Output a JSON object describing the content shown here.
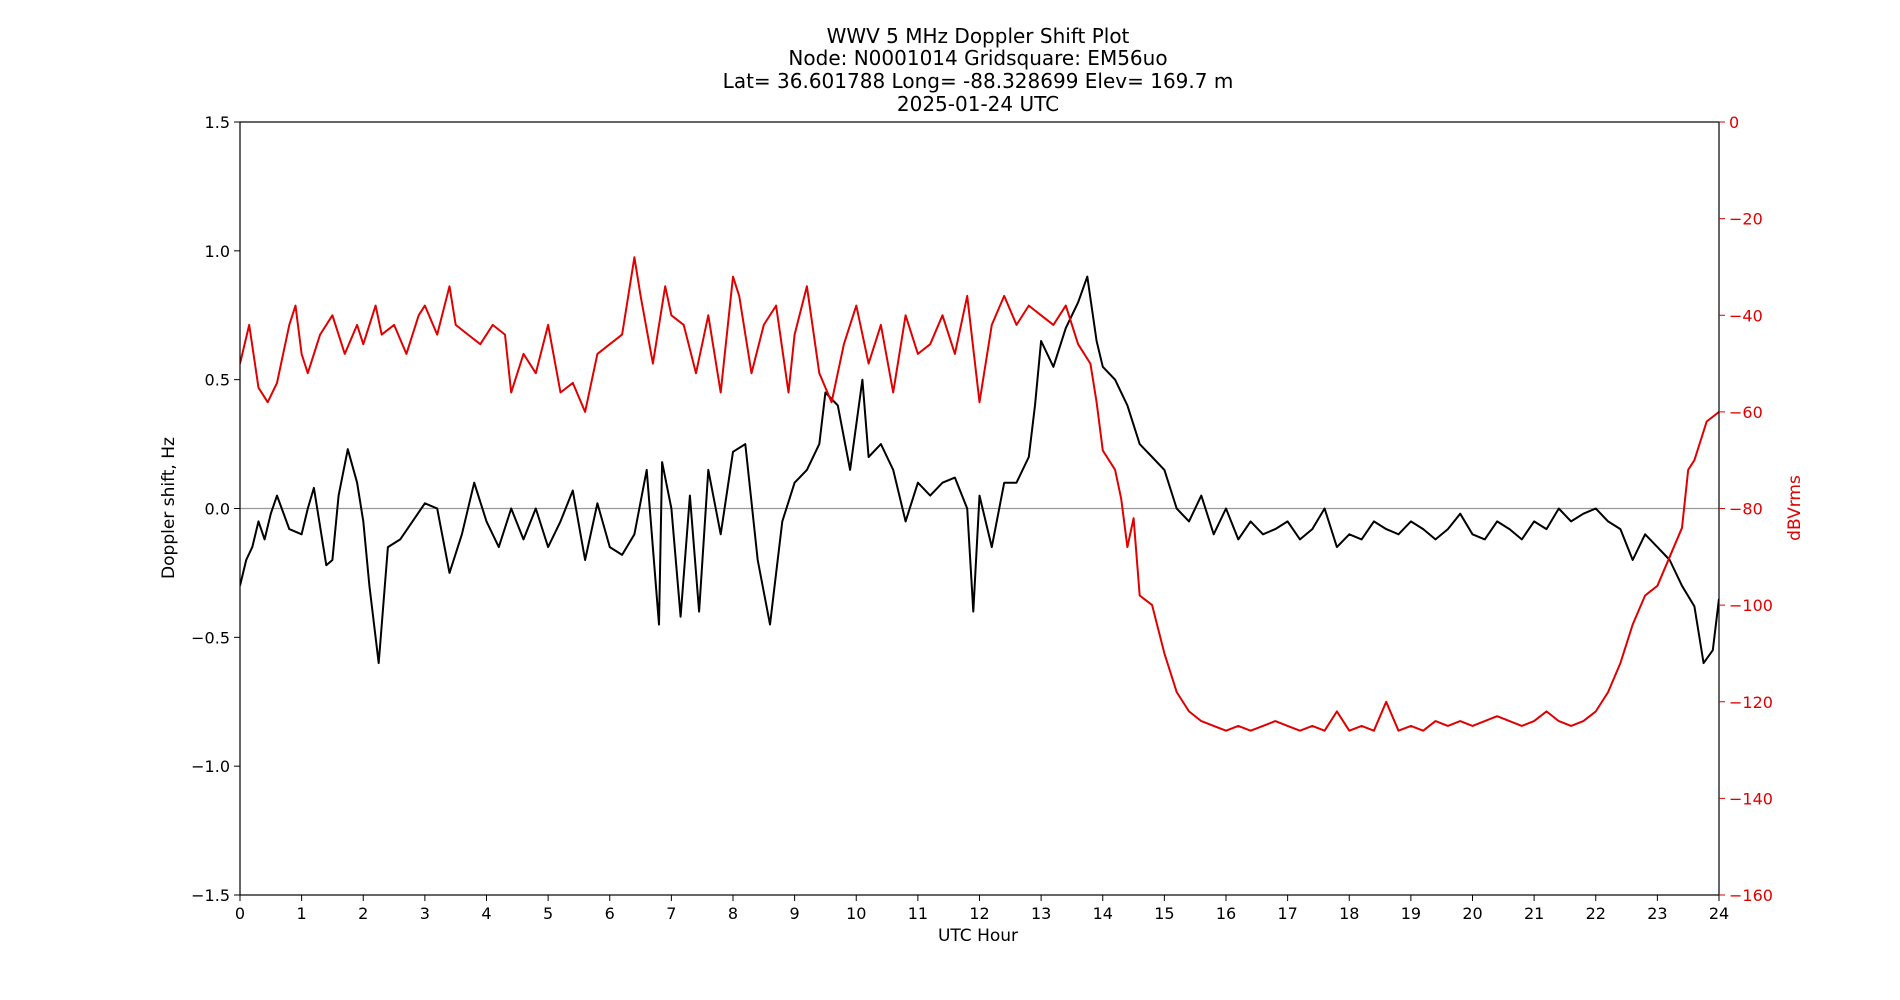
{
  "chart_data": {
    "type": "line",
    "title_lines": [
      "WWV 5 MHz Doppler Shift Plot",
      "Node:  N0001014     Gridsquare:  EM56uo",
      "Lat= 36.601788    Long= -88.328699    Elev= 169.7 m",
      "2025-01-24  UTC"
    ],
    "xlabel": "UTC Hour",
    "ylabel": "Doppler shift, Hz",
    "y2label": "dBVrms",
    "xlim": [
      0,
      24
    ],
    "ylim": [
      -1.5,
      1.5
    ],
    "y2lim": [
      -160,
      0
    ],
    "x_ticks": [
      "0",
      "1",
      "2",
      "3",
      "4",
      "5",
      "6",
      "7",
      "8",
      "9",
      "10",
      "11",
      "12",
      "13",
      "14",
      "15",
      "16",
      "17",
      "18",
      "19",
      "20",
      "21",
      "22",
      "23",
      "24"
    ],
    "y_ticks": [
      "1.5",
      "1.0",
      "0.5",
      "0.0",
      "−0.5",
      "−1.0",
      "−1.5"
    ],
    "y2_ticks": [
      "0",
      "−20",
      "−40",
      "−60",
      "−80",
      "−100",
      "−120",
      "−140",
      "−160"
    ],
    "zero_line": 0,
    "colors": {
      "doppler": "#000000",
      "power": "#e00000",
      "zero_line": "#999999"
    },
    "series": [
      {
        "axis": "left",
        "x": [
          0,
          0.1,
          0.2,
          0.3,
          0.4,
          0.5,
          0.6,
          0.8,
          1.0,
          1.1,
          1.2,
          1.4,
          1.5,
          1.6,
          1.75,
          1.9,
          2.0,
          2.1,
          2.25,
          2.4,
          2.6,
          2.8,
          3.0,
          3.2,
          3.4,
          3.6,
          3.8,
          4.0,
          4.2,
          4.4,
          4.6,
          4.8,
          5.0,
          5.2,
          5.4,
          5.6,
          5.8,
          6.0,
          6.2,
          6.4,
          6.6,
          6.8,
          6.85,
          7.0,
          7.15,
          7.3,
          7.45,
          7.6,
          7.8,
          8.0,
          8.2,
          8.4,
          8.6,
          8.8,
          9.0,
          9.2,
          9.4,
          9.5,
          9.7,
          9.9,
          10.1,
          10.2,
          10.4,
          10.6,
          10.8,
          11.0,
          11.2,
          11.4,
          11.6,
          11.8,
          11.9,
          12.0,
          12.2,
          12.4,
          12.6,
          12.8,
          12.9,
          13.0,
          13.2,
          13.4,
          13.6,
          13.75,
          13.9,
          14.0,
          14.2,
          14.4,
          14.6,
          14.8,
          15.0,
          15.2,
          15.4,
          15.6,
          15.8,
          16.0,
          16.2,
          16.4,
          16.6,
          16.8,
          17.0,
          17.2,
          17.4,
          17.6,
          17.8,
          18.0,
          18.2,
          18.4,
          18.6,
          18.8,
          19.0,
          19.2,
          19.4,
          19.6,
          19.8,
          20.0,
          20.2,
          20.4,
          20.6,
          20.8,
          21.0,
          21.2,
          21.4,
          21.6,
          21.8,
          22.0,
          22.2,
          22.4,
          22.6,
          22.8,
          23.0,
          23.2,
          23.4,
          23.6,
          23.75,
          23.9,
          24.0
        ],
        "y": [
          -0.3,
          -0.2,
          -0.15,
          -0.05,
          -0.12,
          -0.02,
          0.05,
          -0.08,
          -0.1,
          0.0,
          0.08,
          -0.22,
          -0.2,
          0.05,
          0.23,
          0.1,
          -0.05,
          -0.3,
          -0.6,
          -0.15,
          -0.12,
          -0.05,
          0.02,
          0.0,
          -0.25,
          -0.1,
          0.1,
          -0.05,
          -0.15,
          0.0,
          -0.12,
          0.0,
          -0.15,
          -0.05,
          0.07,
          -0.2,
          0.02,
          -0.15,
          -0.18,
          -0.1,
          0.15,
          -0.45,
          0.18,
          0.0,
          -0.42,
          0.05,
          -0.4,
          0.15,
          -0.1,
          0.22,
          0.25,
          -0.2,
          -0.45,
          -0.05,
          0.1,
          0.15,
          0.25,
          0.45,
          0.4,
          0.15,
          0.5,
          0.2,
          0.25,
          0.15,
          -0.05,
          0.1,
          0.05,
          0.1,
          0.12,
          0.0,
          -0.4,
          0.05,
          -0.15,
          0.1,
          0.1,
          0.2,
          0.4,
          0.65,
          0.55,
          0.7,
          0.8,
          0.9,
          0.65,
          0.55,
          0.5,
          0.4,
          0.25,
          0.2,
          0.15,
          0.0,
          -0.05,
          0.05,
          -0.1,
          0.0,
          -0.12,
          -0.05,
          -0.1,
          -0.08,
          -0.05,
          -0.12,
          -0.08,
          0.0,
          -0.15,
          -0.1,
          -0.12,
          -0.05,
          -0.08,
          -0.1,
          -0.05,
          -0.08,
          -0.12,
          -0.08,
          -0.02,
          -0.1,
          -0.12,
          -0.05,
          -0.08,
          -0.12,
          -0.05,
          -0.08,
          0.0,
          -0.05,
          -0.02,
          0.0,
          -0.05,
          -0.08,
          -0.2,
          -0.1,
          -0.15,
          -0.2,
          -0.3,
          -0.38,
          -0.6,
          -0.55,
          -0.35
        ]
      },
      {
        "axis": "right",
        "x": [
          0,
          0.15,
          0.3,
          0.45,
          0.6,
          0.8,
          0.9,
          1.0,
          1.1,
          1.3,
          1.5,
          1.7,
          1.9,
          2.0,
          2.2,
          2.3,
          2.5,
          2.7,
          2.9,
          3.0,
          3.2,
          3.4,
          3.5,
          3.7,
          3.9,
          4.1,
          4.3,
          4.4,
          4.6,
          4.8,
          5.0,
          5.2,
          5.4,
          5.6,
          5.8,
          6.0,
          6.2,
          6.4,
          6.5,
          6.7,
          6.9,
          7.0,
          7.2,
          7.4,
          7.6,
          7.8,
          8.0,
          8.1,
          8.3,
          8.5,
          8.7,
          8.9,
          9.0,
          9.2,
          9.4,
          9.6,
          9.8,
          10.0,
          10.2,
          10.4,
          10.6,
          10.8,
          11.0,
          11.2,
          11.4,
          11.6,
          11.8,
          12.0,
          12.2,
          12.4,
          12.6,
          12.8,
          13.0,
          13.2,
          13.4,
          13.6,
          13.8,
          13.9,
          14.0,
          14.2,
          14.3,
          14.4,
          14.5,
          14.6,
          14.8,
          15.0,
          15.2,
          15.4,
          15.6,
          15.8,
          16.0,
          16.2,
          16.4,
          16.6,
          16.8,
          17.0,
          17.2,
          17.4,
          17.6,
          17.8,
          18.0,
          18.2,
          18.4,
          18.6,
          18.8,
          19.0,
          19.2,
          19.4,
          19.6,
          19.8,
          20.0,
          20.2,
          20.4,
          20.6,
          20.8,
          21.0,
          21.2,
          21.4,
          21.6,
          21.8,
          22.0,
          22.2,
          22.4,
          22.6,
          22.8,
          23.0,
          23.2,
          23.4,
          23.5,
          23.6,
          23.8,
          24.0
        ],
        "y": [
          -50,
          -42,
          -55,
          -58,
          -54,
          -42,
          -38,
          -48,
          -52,
          -44,
          -40,
          -48,
          -42,
          -46,
          -38,
          -44,
          -42,
          -48,
          -40,
          -38,
          -44,
          -34,
          -42,
          -44,
          -46,
          -42,
          -44,
          -56,
          -48,
          -52,
          -42,
          -56,
          -54,
          -60,
          -48,
          -46,
          -44,
          -28,
          -36,
          -50,
          -34,
          -40,
          -42,
          -52,
          -40,
          -56,
          -32,
          -36,
          -52,
          -42,
          -38,
          -56,
          -44,
          -34,
          -52,
          -58,
          -46,
          -38,
          -50,
          -42,
          -56,
          -40,
          -48,
          -46,
          -40,
          -48,
          -36,
          -58,
          -42,
          -36,
          -42,
          -38,
          -40,
          -42,
          -38,
          -46,
          -50,
          -58,
          -68,
          -72,
          -78,
          -88,
          -82,
          -98,
          -100,
          -110,
          -118,
          -122,
          -124,
          -125,
          -126,
          -125,
          -126,
          -125,
          -124,
          -125,
          -126,
          -125,
          -126,
          -122,
          -126,
          -125,
          -126,
          -120,
          -126,
          -125,
          -126,
          -124,
          -125,
          -124,
          -125,
          -124,
          -123,
          -124,
          -125,
          -124,
          -122,
          -124,
          -125,
          -124,
          -122,
          -118,
          -112,
          -104,
          -98,
          -96,
          -90,
          -84,
          -72,
          -70,
          -62,
          -60
        ]
      }
    ]
  }
}
